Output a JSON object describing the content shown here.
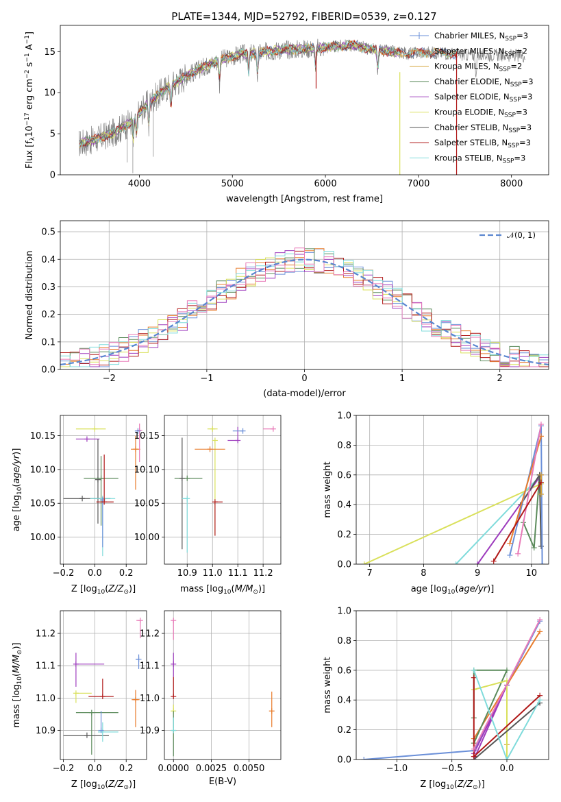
{
  "title": "PLATE=1344, MJD=52792, FIBERID=0539, z=0.127",
  "colors": {
    "Chabrier MILES": "#6a8fd8",
    "Salpeter MILES": "#e87b2a",
    "Kroupa MILES": "#d4a238",
    "Chabrier ELODIE": "#5a8a5a",
    "Salpeter ELODIE": "#9d3bbd",
    "Kroupa ELODIE": "#d9e05a",
    "Chabrier STELIB": "#555555",
    "Salpeter STELIB": "#b01818",
    "Kroupa STELIB": "#7fdbdb",
    "extra_pink": "#e87ab8"
  },
  "legend": [
    "Chabrier MILES, N_SSP=3",
    "Salpeter MILES, N_SSP=2",
    "Kroupa MILES, N_SSP=2",
    "Chabrier ELODIE, N_SSP=3",
    "Salpeter ELODIE, N_SSP=3",
    "Kroupa ELODIE, N_SSP=3",
    "Chabrier STELIB, N_SSP=3",
    "Salpeter STELIB, N_SSP=3",
    "Kroupa STELIB, N_SSP=3"
  ],
  "legend2": "𝒩(0, 1)",
  "chart_data": [
    {
      "id": "spectrum",
      "type": "line",
      "title": "PLATE=1344, MJD=52792, FIBERID=0539, z=0.127",
      "xlabel": "wavelength [Angstrom, rest frame]",
      "ylabel": "Flux [f_λ 10^-17 erg cm^-2 s^-1 A^-1]",
      "xlim": [
        3150,
        8400
      ],
      "ylim": [
        0,
        18.2
      ],
      "xticks": [
        4000,
        5000,
        6000,
        7000,
        8000
      ],
      "yticks": [
        0,
        5,
        10,
        15
      ],
      "grid": false,
      "legend_position": "right",
      "continuum": {
        "x": [
          3350,
          3500,
          3700,
          3900,
          4100,
          4300,
          4500,
          4700,
          4900,
          5100,
          5300,
          5500,
          5700,
          5900,
          6100,
          6300,
          6500,
          6700,
          6900,
          7100,
          7300,
          7500,
          7700,
          7900,
          8100
        ],
        "y": [
          3.8,
          4.2,
          5.0,
          6.3,
          8.8,
          10.6,
          12.0,
          13.2,
          14.1,
          14.7,
          14.9,
          15.2,
          15.3,
          15.4,
          15.6,
          15.8,
          15.3,
          15.0,
          14.8,
          14.9,
          14.8,
          14.6,
          14.6,
          14.6,
          14.5
        ]
      },
      "data_range": [
        3350,
        8150
      ],
      "model_range": [
        3360,
        7420
      ]
    },
    {
      "id": "residual-histogram",
      "type": "bar",
      "xlabel": "(data-model)/error",
      "ylabel": "Normed distribution",
      "xlim": [
        -2.5,
        2.5
      ],
      "ylim": [
        0,
        0.54
      ],
      "xticks": [
        -2,
        -1,
        0,
        1,
        2
      ],
      "yticks": [
        0.0,
        0.1,
        0.2,
        0.3,
        0.4,
        0.5
      ],
      "grid": true,
      "legend_position": "top-right",
      "bin_width": 0.1,
      "gaussian": {
        "name": "𝒩(0, 1)",
        "mean": 0,
        "sigma": 1
      }
    },
    {
      "id": "age-vs-Z",
      "type": "scatter",
      "xlabel": "Z [log10(Z/Z☉)]",
      "ylabel": "age  [log10(age/yr)]",
      "xlim": [
        -0.22,
        0.33
      ],
      "ylim": [
        9.96,
        10.18
      ],
      "xticks": [
        -0.2,
        0.0,
        0.2
      ],
      "xtick_labels": [
        "−0.2",
        "0.0",
        "0.2"
      ],
      "yticks": [
        10.0,
        10.05,
        10.1,
        10.15
      ],
      "ytick_labels": [
        "10.00",
        "10.05",
        "10.10",
        "10.15"
      ],
      "grid": true,
      "points": [
        {
          "c": "Kroupa ELODIE",
          "x": 0.0,
          "xerr": [
            0.12,
            0.07
          ],
          "y": 10.16,
          "yerr": [
            0.0,
            0.0
          ]
        },
        {
          "c": "Salpeter ELODIE",
          "x": -0.05,
          "xerr": [
            0.07,
            0.08
          ],
          "y": 10.145,
          "yerr": [
            0.0,
            0.0
          ]
        },
        {
          "c": "Chabrier STELIB",
          "x": 0.02,
          "xerr": [
            0.0,
            0.0
          ],
          "y": 10.085,
          "yerr": [
            0.065,
            0.06
          ]
        },
        {
          "c": "Chabrier ELODIE",
          "x": 0.04,
          "xerr": [
            0.11,
            0.11
          ],
          "y": 10.087,
          "yerr": [
            0.07,
            0.033
          ]
        },
        {
          "c": "Chabrier STELIB",
          "x": -0.08,
          "xerr": [
            0.12,
            0.18
          ],
          "y": 10.057,
          "yerr": [
            0.0,
            0.0
          ]
        },
        {
          "c": "Kroupa STELIB",
          "x": 0.05,
          "xerr": [
            0.08,
            0.08
          ],
          "y": 10.057,
          "yerr": [
            0.085,
            0.0
          ]
        },
        {
          "c": "Chabrier MILES",
          "x": 0.05,
          "xerr": [
            0.0,
            0.0
          ],
          "y": 10.055,
          "yerr": [
            0.07,
            0.0
          ]
        },
        {
          "c": "Salpeter STELIB",
          "x": 0.06,
          "xerr": [
            0.05,
            0.06
          ],
          "y": 10.052,
          "yerr": [
            0.0,
            0.07
          ]
        },
        {
          "c": "Salpeter MILES",
          "x": 0.26,
          "xerr": [
            0.03,
            0.03
          ],
          "y": 10.13,
          "yerr": [
            0.06,
            0.02
          ]
        },
        {
          "c": "extra_pink",
          "x": 0.285,
          "xerr": [
            0.0,
            0.0
          ],
          "y": 10.158,
          "yerr": [
            0.047,
            0.01
          ]
        },
        {
          "c": "Chabrier MILES",
          "x": 0.275,
          "xerr": [
            0.02,
            0.0
          ],
          "y": 10.157,
          "yerr": [
            0.0,
            0.0
          ]
        }
      ]
    },
    {
      "id": "age-vs-mass",
      "type": "scatter",
      "xlabel": "mass [log10(M/M☉)]",
      "ylabel": "",
      "xlim": [
        10.81,
        11.27
      ],
      "ylim": [
        9.96,
        10.18
      ],
      "xticks": [
        10.9,
        11.0,
        11.1,
        11.2
      ],
      "xtick_labels": [
        "10.9",
        "11.0",
        "11.1",
        "11.2"
      ],
      "yticks": [
        10.0,
        10.05,
        10.1,
        10.15
      ],
      "ytick_labels": [
        "10.00",
        "10.05",
        "10.10",
        "10.15"
      ],
      "grid": true,
      "points": [
        {
          "c": "Kroupa ELODIE",
          "x": 11.0,
          "xerr": [
            0.02,
            0.02
          ],
          "y": 10.16,
          "yerr": [
            0.0,
            0.0
          ]
        },
        {
          "c": "Salpeter ELODIE",
          "x": 11.1,
          "xerr": [
            0.04,
            0.0
          ],
          "y": 10.143,
          "yerr": [
            0.0,
            0.02
          ]
        },
        {
          "c": "Kroupa ELODIE",
          "x": 11.01,
          "xerr": [
            0.0,
            0.0
          ],
          "y": 10.143,
          "yerr": [
            0.14,
            0.0
          ]
        },
        {
          "c": "Chabrier MILES",
          "x": 11.12,
          "xerr": [
            0.04,
            0.0
          ],
          "y": 10.157,
          "yerr": [
            0.0,
            0.0
          ]
        },
        {
          "c": "Salpeter MILES",
          "x": 10.99,
          "xerr": [
            0.06,
            0.06
          ],
          "y": 10.13,
          "yerr": [
            0.0,
            0.0
          ]
        },
        {
          "c": "extra_pink",
          "x": 11.24,
          "xerr": [
            0.04,
            0.0
          ],
          "y": 10.16,
          "yerr": [
            0.0,
            0.0
          ]
        },
        {
          "c": "Chabrier ELODIE",
          "x": 10.9,
          "xerr": [
            0.05,
            0.06
          ],
          "y": 10.087,
          "yerr": [
            0.0,
            0.0
          ]
        },
        {
          "c": "Chabrier STELIB",
          "x": 10.88,
          "xerr": [
            0.0,
            0.0
          ],
          "y": 10.087,
          "yerr": [
            0.105,
            0.06
          ]
        },
        {
          "c": "Kroupa STELIB",
          "x": 10.9,
          "xerr": [
            0.02,
            0.0
          ],
          "y": 10.057,
          "yerr": [
            0.08,
            0.0
          ]
        },
        {
          "c": "Salpeter STELIB",
          "x": 11.01,
          "xerr": [
            0.0,
            0.03
          ],
          "y": 10.052,
          "yerr": [
            0.05,
            0.0
          ]
        }
      ]
    },
    {
      "id": "mass-weight-vs-age",
      "type": "line",
      "xlabel": "age  [log10(age/yr)]",
      "ylabel": "mass weight",
      "xlim": [
        6.75,
        10.32
      ],
      "ylim": [
        0,
        1
      ],
      "xticks": [
        7,
        8,
        9,
        10
      ],
      "xtick_labels": [
        "7",
        "8",
        "9",
        "10"
      ],
      "yticks": [
        0.0,
        0.2,
        0.4,
        0.6,
        0.8,
        1.0
      ],
      "ytick_labels": [
        "0.0",
        "0.2",
        "0.4",
        "0.6",
        "0.8",
        "1.0"
      ],
      "grid": true,
      "series": [
        {
          "c": "Kroupa ELODIE",
          "x": [
            6.9,
            10.18
          ],
          "y": [
            0.0,
            0.54
          ]
        },
        {
          "c": "Kroupa STELIB",
          "x": [
            8.6,
            10.18
          ],
          "y": [
            0.0,
            0.6
          ]
        },
        {
          "c": "Salpeter ELODIE",
          "x": [
            9.0,
            10.18
          ],
          "y": [
            0.0,
            0.6
          ]
        },
        {
          "c": "Chabrier ELODIE",
          "x": [
            9.85,
            10.05,
            10.15
          ],
          "y": [
            0.28,
            0.11,
            0.6
          ]
        },
        {
          "c": "Chabrier STELIB",
          "x": [
            9.8,
            10.15,
            10.18
          ],
          "y": [
            0.4,
            0.6,
            0.12
          ]
        },
        {
          "c": "Chabrier MILES",
          "x": [
            9.6,
            10.18,
            10.2
          ],
          "y": [
            0.06,
            0.93,
            0.0
          ]
        },
        {
          "c": "Salpeter MILES",
          "x": [
            9.6,
            10.18
          ],
          "y": [
            0.14,
            0.86
          ]
        },
        {
          "c": "extra_pink",
          "x": [
            9.75,
            10.18
          ],
          "y": [
            0.07,
            0.94
          ]
        },
        {
          "c": "Kroupa MILES",
          "x": [
            10.18,
            10.18
          ],
          "y": [
            0.47,
            0.6
          ]
        },
        {
          "c": "Salpeter STELIB",
          "x": [
            9.3,
            10.18
          ],
          "y": [
            0.02,
            0.55
          ]
        }
      ]
    },
    {
      "id": "mass-vs-Z",
      "type": "scatter",
      "xlabel": "Z [log10(Z/Z☉)]",
      "ylabel": "mass [log10(M/M☉)]",
      "xlim": [
        -0.22,
        0.33
      ],
      "ylim": [
        10.81,
        11.27
      ],
      "xticks": [
        -0.2,
        0.0,
        0.2
      ],
      "xtick_labels": [
        "−0.2",
        "0.0",
        "0.2"
      ],
      "yticks": [
        10.9,
        11.0,
        11.1,
        11.2
      ],
      "ytick_labels": [
        "10.9",
        "11.0",
        "11.1",
        "11.2"
      ],
      "grid": true,
      "points": [
        {
          "c": "Salpeter ELODIE",
          "x": -0.12,
          "xerr": [
            0.0,
            0.18
          ],
          "y": 11.105,
          "yerr": [
            0.07,
            0.035
          ]
        },
        {
          "c": "Kroupa ELODIE",
          "x": -0.12,
          "xerr": [
            0.0,
            0.1
          ],
          "y": 11.015,
          "yerr": [
            0.03,
            0.0
          ]
        },
        {
          "c": "Salpeter STELIB",
          "x": 0.05,
          "xerr": [
            0.09,
            0.07
          ],
          "y": 11.005,
          "yerr": [
            0.0,
            0.055
          ]
        },
        {
          "c": "Chabrier ELODIE",
          "x": -0.02,
          "xerr": [
            0.1,
            0.17
          ],
          "y": 10.955,
          "yerr": [
            0.13,
            0.0
          ]
        },
        {
          "c": "Chabrier STELIB",
          "x": -0.05,
          "xerr": [
            0.15,
            0.14
          ],
          "y": 10.885,
          "yerr": [
            0.0,
            0.0
          ]
        },
        {
          "c": "Kroupa STELIB",
          "x": 0.05,
          "xerr": [
            0.03,
            0.1
          ],
          "y": 10.895,
          "yerr": [
            0.03,
            0.03
          ]
        },
        {
          "c": "Chabrier MILES",
          "x": 0.04,
          "xerr": [
            0.0,
            0.0
          ],
          "y": 10.9,
          "yerr": [
            0.0,
            0.06
          ]
        },
        {
          "c": "Salpeter MILES",
          "x": 0.26,
          "xerr": [
            0.025,
            0.025
          ],
          "y": 10.995,
          "yerr": [
            0.085,
            0.03
          ]
        },
        {
          "c": "Chabrier MILES",
          "x": 0.28,
          "xerr": [
            0.02,
            0.0
          ],
          "y": 11.12,
          "yerr": [
            0.03,
            0.015
          ]
        },
        {
          "c": "extra_pink",
          "x": 0.29,
          "xerr": [
            0.025,
            0.0
          ],
          "y": 11.24,
          "yerr": [
            0.055,
            0.0
          ]
        }
      ]
    },
    {
      "id": "mass-vs-EBV",
      "type": "scatter",
      "xlabel": "E(B-V)",
      "ylabel": "",
      "xlim": [
        -0.0006,
        0.0071
      ],
      "ylim": [
        10.81,
        11.27
      ],
      "xticks": [
        0.0,
        0.0025,
        0.005
      ],
      "xtick_labels": [
        "0.0000",
        "0.0025",
        "0.0050"
      ],
      "yticks": [
        10.9,
        11.0,
        11.1,
        11.2
      ],
      "ytick_labels": [
        "10.9",
        "11.0",
        "11.1",
        "11.2"
      ],
      "grid": true,
      "points": [
        {
          "c": "extra_pink",
          "x": 0.0,
          "xerr": [
            0.0,
            0.0
          ],
          "y": 11.24,
          "yerr": [
            0.06,
            0.0
          ]
        },
        {
          "c": "Salpeter ELODIE",
          "x": 0.0,
          "xerr": [
            0.0,
            0.0
          ],
          "y": 11.105,
          "yerr": [
            0.04,
            0.035
          ]
        },
        {
          "c": "Salpeter STELIB",
          "x": 0.0,
          "xerr": [
            0.0,
            0.0
          ],
          "y": 11.005,
          "yerr": [
            0.0,
            0.06
          ]
        },
        {
          "c": "Kroupa ELODIE",
          "x": 0.0,
          "xerr": [
            0.0,
            0.0
          ],
          "y": 10.96,
          "yerr": [
            0.0,
            0.02
          ]
        },
        {
          "c": "Chabrier ELODIE",
          "x": 0.0,
          "xerr": [
            0.0,
            0.0
          ],
          "y": 10.9,
          "yerr": [
            0.08,
            0.06
          ]
        },
        {
          "c": "Kroupa STELIB",
          "x": 0.0,
          "xerr": [
            0.0,
            0.0
          ],
          "y": 10.9,
          "yerr": [
            0.0,
            0.04
          ]
        },
        {
          "c": "Salpeter MILES",
          "x": 0.0065,
          "xerr": [
            0.0,
            0.0
          ],
          "y": 10.96,
          "yerr": [
            0.05,
            0.06
          ]
        }
      ]
    },
    {
      "id": "mass-weight-vs-Z",
      "type": "line",
      "xlabel": "Z [log10(Z/Z☉)]",
      "ylabel": "mass weight",
      "xlim": [
        -1.37,
        0.38
      ],
      "ylim": [
        0,
        1
      ],
      "xticks": [
        -1.0,
        -0.5,
        0.0
      ],
      "xtick_labels": [
        "−1.0",
        "−0.5",
        "0.0"
      ],
      "yticks": [
        0.0,
        0.2,
        0.4,
        0.6,
        0.8,
        1.0
      ],
      "ytick_labels": [
        "0.0",
        "0.2",
        "0.4",
        "0.6",
        "0.8",
        "1.0"
      ],
      "grid": true,
      "series": [
        {
          "c": "Chabrier MILES",
          "x": [
            -1.3,
            -0.3,
            0.3
          ],
          "y": [
            0.0,
            0.06,
            0.93
          ]
        },
        {
          "c": "Salpeter MILES",
          "x": [
            -0.3,
            0.3
          ],
          "y": [
            0.14,
            0.86
          ]
        },
        {
          "c": "Kroupa MILES",
          "x": [
            0.0,
            0.0
          ],
          "y": [
            0.1,
            0.5
          ]
        },
        {
          "c": "Chabrier ELODIE",
          "x": [
            -0.3,
            -0.3,
            0.0,
            -0.3
          ],
          "y": [
            0.28,
            0.6,
            0.6,
            0.11
          ]
        },
        {
          "c": "Salpeter ELODIE",
          "x": [
            -0.3,
            0.0,
            -0.3
          ],
          "y": [
            0.0,
            0.5,
            0.04
          ]
        },
        {
          "c": "Kroupa ELODIE",
          "x": [
            -0.3,
            0.0,
            0.0
          ],
          "y": [
            0.47,
            0.53,
            0.0
          ]
        },
        {
          "c": "Chabrier STELIB",
          "x": [
            -0.3,
            0.3
          ],
          "y": [
            0.0,
            0.38
          ]
        },
        {
          "c": "Salpeter STELIB",
          "x": [
            -0.3,
            -0.3,
            0.3
          ],
          "y": [
            0.55,
            0.02,
            0.43
          ]
        },
        {
          "c": "Kroupa STELIB",
          "x": [
            -0.3,
            0.0,
            0.3
          ],
          "y": [
            0.6,
            0.0,
            0.4
          ]
        },
        {
          "c": "extra_pink",
          "x": [
            -0.3,
            0.3
          ],
          "y": [
            0.07,
            0.94
          ]
        }
      ]
    }
  ]
}
